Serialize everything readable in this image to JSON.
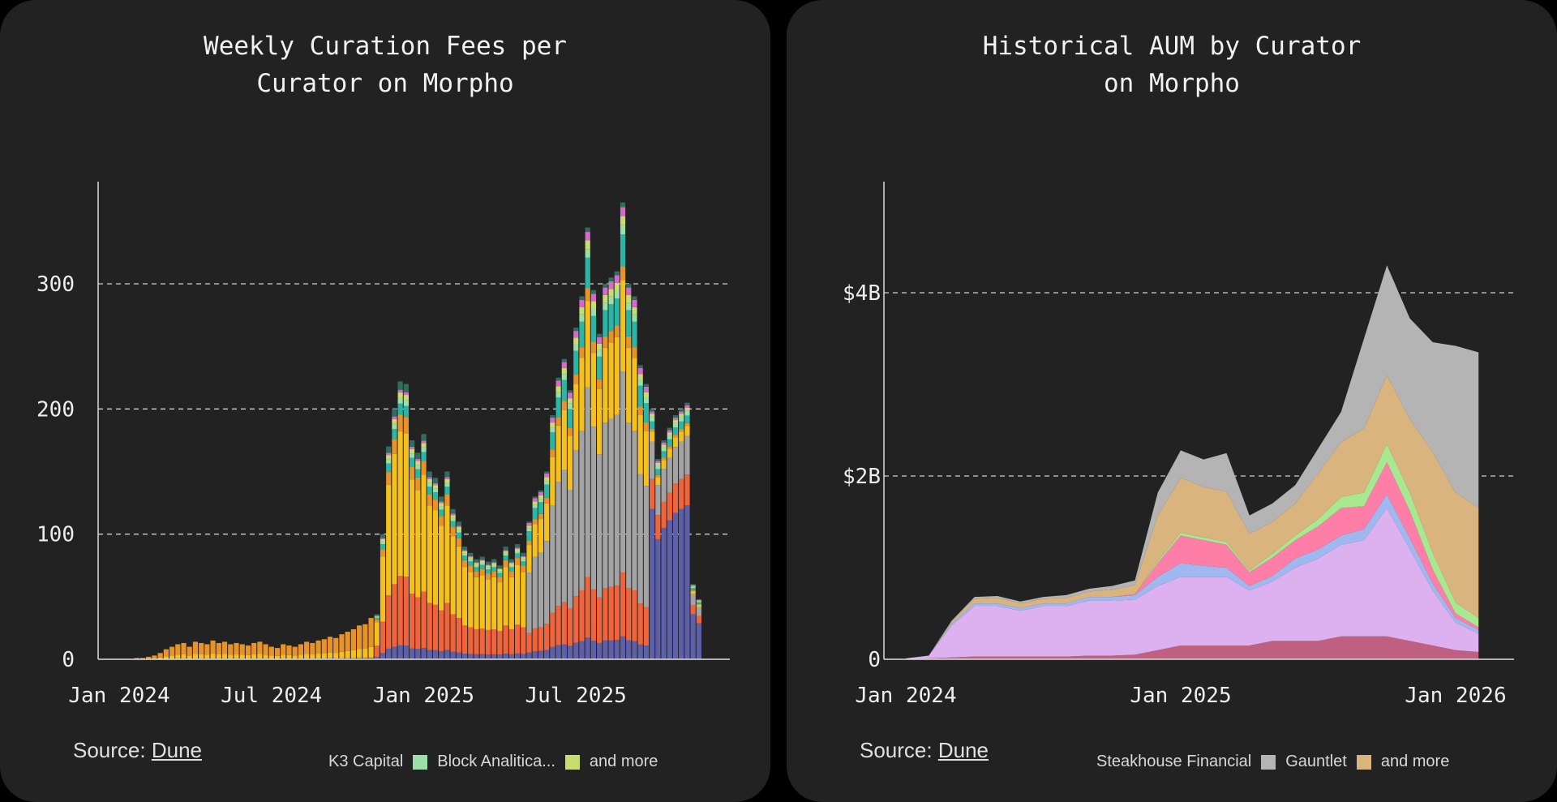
{
  "charts": [
    {
      "title": "Weekly Curation Fees per\nCurator on Morpho",
      "source_label": "Source:",
      "source_link": "Dune",
      "legend": [
        {
          "label": "K3 Capital"
        },
        {
          "swatch": "#9adfa8",
          "label": "Block Analitica..."
        },
        {
          "swatch": "#c9dc70",
          "label": "and more"
        }
      ]
    },
    {
      "title": "Historical AUM by Curator\non Morpho",
      "source_label": "Source:",
      "source_link": "Dune",
      "legend": [
        {
          "label": "Steakhouse Financial"
        },
        {
          "swatch": "#b4b4b4",
          "label": "Gauntlet"
        },
        {
          "swatch": "#d9b47e",
          "label": "and more"
        }
      ]
    }
  ],
  "chart_data": [
    {
      "type": "bar",
      "stacked": true,
      "title": "Weekly Curation Fees per Curator on Morpho",
      "x_unit": "week index (week 2 = Jan 2024)",
      "xticks": [
        {
          "label": "Jan 2024",
          "week": 2
        },
        {
          "label": "Jul 2024",
          "week": 28
        },
        {
          "label": "Jan 2025",
          "week": 54
        },
        {
          "label": "Jul 2025",
          "week": 80
        }
      ],
      "yticks": [
        {
          "label": "0",
          "value": 0
        },
        {
          "label": "100",
          "value": 100
        },
        {
          "label": "200",
          "value": 200
        },
        {
          "label": "300",
          "value": 300
        }
      ],
      "ylim": [
        0,
        385
      ],
      "grid": "horizontal dashed",
      "totals": [
        0,
        0,
        0,
        0,
        0,
        1,
        1,
        2,
        3,
        5,
        8,
        10,
        12,
        13,
        10,
        14,
        13,
        12,
        15,
        13,
        14,
        12,
        13,
        12,
        11,
        13,
        14,
        12,
        10,
        9,
        12,
        11,
        10,
        12,
        14,
        13,
        15,
        16,
        18,
        17,
        20,
        22,
        24,
        27,
        28,
        33,
        36,
        100,
        170,
        200,
        222,
        220,
        175,
        165,
        180,
        150,
        145,
        130,
        150,
        120,
        110,
        90,
        85,
        80,
        82,
        78,
        80,
        75,
        90,
        80,
        92,
        85,
        110,
        130,
        135,
        150,
        195,
        225,
        240,
        215,
        265,
        290,
        345,
        295,
        260,
        300,
        305,
        310,
        365,
        300,
        290,
        235,
        220,
        200,
        160,
        175,
        185,
        195,
        200,
        205,
        60,
        48
      ],
      "segment_colors": [
        "#5d5fa8",
        "#f0643c",
        "#a3a3a3",
        "#f5c01e",
        "#e8922a",
        "#2ab5a5",
        "#9adfa8",
        "#c9dc70",
        "#d66ac8",
        "#2d6e5e"
      ],
      "composition": [
        {
          "from": 0,
          "to": 45,
          "shares": [
            0.04,
            0,
            0,
            0.26,
            0.7,
            0,
            0,
            0,
            0,
            0
          ]
        },
        {
          "from": 46,
          "to": 71,
          "shares": [
            0.05,
            0.25,
            0,
            0.52,
            0.06,
            0.04,
            0.02,
            0.02,
            0.01,
            0.03
          ]
        },
        {
          "from": 72,
          "to": 92,
          "shares": [
            0.05,
            0.14,
            0.44,
            0.2,
            0.03,
            0.07,
            0.02,
            0.02,
            0.02,
            0.01
          ]
        },
        {
          "from": 93,
          "to": 101,
          "shares": [
            0.6,
            0.12,
            0.15,
            0.04,
            0.01,
            0.03,
            0.02,
            0.01,
            0.01,
            0.01
          ]
        }
      ]
    },
    {
      "type": "area",
      "stacked": true,
      "title": "Historical AUM by Curator on Morpho",
      "x_unit": "months since Jan 2024",
      "x": [
        0,
        1,
        2,
        3,
        4,
        5,
        6,
        7,
        8,
        9,
        10,
        11,
        12,
        13,
        14,
        15,
        16,
        17,
        18,
        19,
        20,
        21,
        22,
        23,
        24,
        25
      ],
      "xticks": [
        {
          "label": "Jan 2024",
          "month": 0
        },
        {
          "label": "Jan 2025",
          "month": 12
        },
        {
          "label": "Jan 2026",
          "month": 24
        }
      ],
      "yticks": [
        {
          "label": "0",
          "value": 0
        },
        {
          "label": "$2B",
          "value": 2
        },
        {
          "label": "$4B",
          "value": 4
        }
      ],
      "ylim": [
        0,
        5.2
      ],
      "y_unit": "USD billions",
      "grid": "horizontal dashed",
      "series": [
        {
          "color": "#c06080",
          "values": [
            0,
            0.01,
            0.02,
            0.03,
            0.03,
            0.03,
            0.03,
            0.03,
            0.04,
            0.04,
            0.05,
            0.1,
            0.15,
            0.15,
            0.15,
            0.15,
            0.2,
            0.2,
            0.2,
            0.25,
            0.25,
            0.25,
            0.2,
            0.15,
            0.1,
            0.08
          ]
        },
        {
          "color": "#ddb0f0",
          "values": [
            0.01,
            0.03,
            0.35,
            0.55,
            0.55,
            0.5,
            0.55,
            0.55,
            0.6,
            0.6,
            0.6,
            0.7,
            0.75,
            0.75,
            0.75,
            0.6,
            0.65,
            0.8,
            0.9,
            1.0,
            1.05,
            1.4,
            1.0,
            0.6,
            0.3,
            0.2
          ]
        },
        {
          "color": "#9fb8f0",
          "values": [
            0,
            0,
            0.02,
            0.03,
            0.03,
            0.03,
            0.03,
            0.03,
            0.04,
            0.04,
            0.05,
            0.1,
            0.15,
            0.12,
            0.1,
            0.05,
            0.06,
            0.1,
            0.1,
            0.1,
            0.12,
            0.15,
            0.12,
            0.08,
            0.05,
            0.04
          ]
        },
        {
          "color": "#ff7ea8",
          "values": [
            0,
            0,
            0,
            0,
            0,
            0,
            0,
            0,
            0,
            0,
            0.01,
            0.15,
            0.3,
            0.28,
            0.25,
            0.15,
            0.2,
            0.2,
            0.25,
            0.3,
            0.25,
            0.35,
            0.3,
            0.15,
            0.05,
            0.03
          ]
        },
        {
          "color": "#a8e890",
          "values": [
            0,
            0,
            0,
            0,
            0,
            0,
            0,
            0,
            0,
            0,
            0,
            0.02,
            0.03,
            0.03,
            0.03,
            0.02,
            0.04,
            0.05,
            0.08,
            0.12,
            0.15,
            0.2,
            0.2,
            0.18,
            0.12,
            0.1
          ]
        },
        {
          "color": "#d9b47e",
          "values": [
            0,
            0,
            0.02,
            0.05,
            0.06,
            0.05,
            0.05,
            0.06,
            0.06,
            0.08,
            0.1,
            0.5,
            0.6,
            0.55,
            0.55,
            0.4,
            0.35,
            0.35,
            0.5,
            0.6,
            0.7,
            0.75,
            0.8,
            1.1,
            1.2,
            1.2
          ]
        },
        {
          "color": "#b4b4b4",
          "values": [
            0,
            0,
            0.01,
            0.02,
            0.02,
            0.02,
            0.02,
            0.03,
            0.03,
            0.04,
            0.05,
            0.25,
            0.3,
            0.3,
            0.42,
            0.2,
            0.2,
            0.2,
            0.27,
            0.33,
            0.98,
            1.2,
            1.1,
            1.2,
            1.6,
            1.7
          ]
        }
      ]
    }
  ]
}
